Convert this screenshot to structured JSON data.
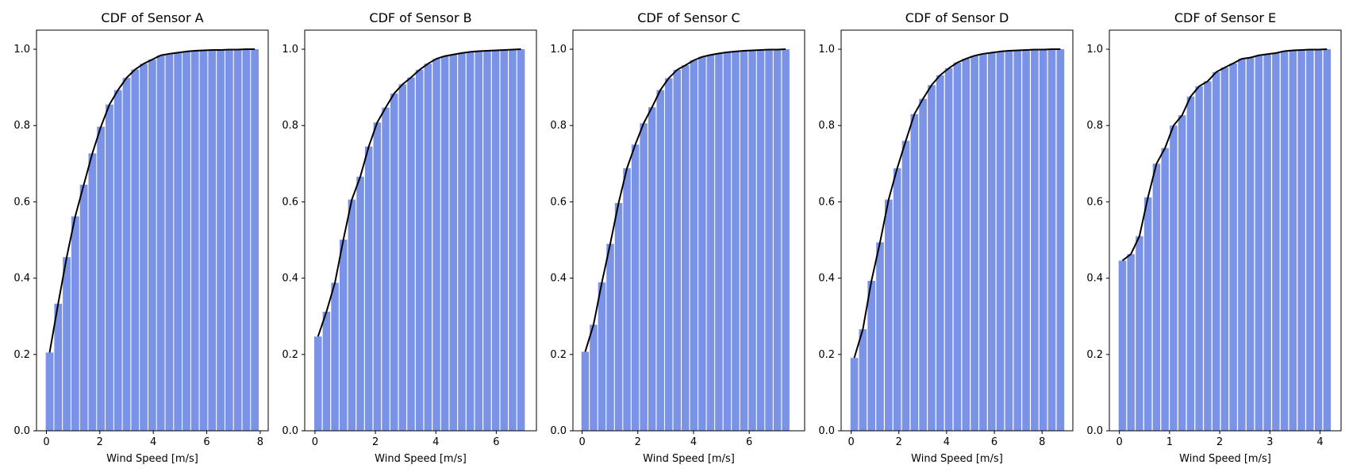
{
  "colors": {
    "bar": "#7b93e6",
    "line": "#000000",
    "axis": "#000000",
    "background": "#ffffff"
  },
  "chart_data": [
    {
      "type": "bar",
      "title": "CDF of Sensor A",
      "xlabel": "Wind Speed [m/s]",
      "ylabel": "",
      "xlim": [
        -0.37,
        8.3
      ],
      "ylim": [
        0,
        1.05
      ],
      "xticks": [
        "0",
        "2",
        "4",
        "6",
        "8"
      ],
      "yticks": [
        "0.0",
        "0.2",
        "0.4",
        "0.6",
        "0.8",
        "1.0"
      ],
      "bar_width": 0.29,
      "x": [
        0.12,
        0.44,
        0.76,
        1.08,
        1.4,
        1.72,
        2.04,
        2.36,
        2.68,
        3.0,
        3.32,
        3.64,
        3.96,
        4.28,
        4.6,
        4.92,
        5.24,
        5.56,
        5.88,
        6.2,
        6.52,
        6.84,
        7.16,
        7.48,
        7.8
      ],
      "values": [
        0.205,
        0.333,
        0.455,
        0.562,
        0.645,
        0.727,
        0.797,
        0.855,
        0.893,
        0.925,
        0.947,
        0.962,
        0.973,
        0.984,
        0.988,
        0.991,
        0.994,
        0.996,
        0.997,
        0.998,
        0.998,
        0.999,
        0.999,
        1.0,
        1.0
      ],
      "grid": false
    },
    {
      "type": "bar",
      "title": "CDF of Sensor B",
      "xlabel": "Wind Speed [m/s]",
      "ylabel": "",
      "xlim": [
        -0.34,
        7.33
      ],
      "ylim": [
        0,
        1.05
      ],
      "xticks": [
        "0",
        "2",
        "4",
        "6"
      ],
      "yticks": [
        "0.0",
        "0.2",
        "0.4",
        "0.6",
        "0.8",
        "1.0"
      ],
      "bar_width": 0.25,
      "x": [
        0.1,
        0.38,
        0.66,
        0.94,
        1.22,
        1.5,
        1.78,
        2.06,
        2.34,
        2.62,
        2.9,
        3.18,
        3.46,
        3.74,
        4.02,
        4.3,
        4.58,
        4.86,
        5.14,
        5.42,
        5.7,
        5.98,
        6.26,
        6.54,
        6.82
      ],
      "values": [
        0.247,
        0.312,
        0.388,
        0.501,
        0.606,
        0.666,
        0.745,
        0.808,
        0.847,
        0.884,
        0.908,
        0.926,
        0.946,
        0.962,
        0.975,
        0.982,
        0.986,
        0.99,
        0.993,
        0.995,
        0.996,
        0.997,
        0.998,
        0.999,
        1.0
      ],
      "grid": false
    },
    {
      "type": "bar",
      "title": "CDF of Sensor C",
      "xlabel": "Wind Speed [m/s]",
      "ylabel": "",
      "xlim": [
        -0.33,
        7.99
      ],
      "ylim": [
        0,
        1.05
      ],
      "xticks": [
        "0",
        "2",
        "4",
        "6"
      ],
      "yticks": [
        "0.0",
        "0.2",
        "0.4",
        "0.6",
        "0.8",
        "1.0"
      ],
      "bar_width": 0.27,
      "x": [
        0.11,
        0.41,
        0.71,
        1.01,
        1.31,
        1.61,
        1.91,
        2.21,
        2.51,
        2.81,
        3.11,
        3.41,
        3.71,
        4.01,
        4.31,
        4.61,
        4.91,
        5.21,
        5.51,
        5.81,
        6.11,
        6.41,
        6.71,
        7.01,
        7.31
      ],
      "values": [
        0.207,
        0.278,
        0.389,
        0.49,
        0.597,
        0.688,
        0.75,
        0.806,
        0.848,
        0.893,
        0.924,
        0.946,
        0.958,
        0.971,
        0.98,
        0.985,
        0.989,
        0.992,
        0.994,
        0.996,
        0.997,
        0.998,
        0.999,
        0.999,
        1.0
      ],
      "grid": false
    },
    {
      "type": "bar",
      "title": "CDF of Sensor D",
      "xlabel": "Wind Speed [m/s]",
      "ylabel": "",
      "xlim": [
        -0.42,
        9.29
      ],
      "ylim": [
        0,
        1.05
      ],
      "xticks": [
        "0",
        "2",
        "4",
        "6",
        "8"
      ],
      "yticks": [
        "0.0",
        "0.2",
        "0.4",
        "0.6",
        "0.8",
        "1.0"
      ],
      "bar_width": 0.32,
      "x": [
        0.13,
        0.49,
        0.85,
        1.21,
        1.57,
        1.93,
        2.29,
        2.65,
        3.01,
        3.37,
        3.73,
        4.09,
        4.45,
        4.81,
        5.17,
        5.53,
        5.89,
        6.25,
        6.61,
        6.97,
        7.33,
        7.69,
        8.05,
        8.41,
        8.77
      ],
      "values": [
        0.191,
        0.266,
        0.393,
        0.494,
        0.606,
        0.688,
        0.76,
        0.83,
        0.87,
        0.906,
        0.932,
        0.95,
        0.965,
        0.975,
        0.983,
        0.988,
        0.991,
        0.994,
        0.996,
        0.997,
        0.998,
        0.999,
        0.999,
        1.0,
        1.0
      ],
      "grid": false
    },
    {
      "type": "bar",
      "title": "CDF of Sensor E",
      "xlabel": "Wind Speed [m/s]",
      "ylabel": "",
      "xlim": [
        -0.2,
        4.42
      ],
      "ylim": [
        0,
        1.05
      ],
      "xticks": [
        "0",
        "1",
        "2",
        "3",
        "4"
      ],
      "yticks": [
        "0.0",
        "0.2",
        "0.4",
        "0.6",
        "0.8",
        "1.0"
      ],
      "bar_width": 0.15,
      "x": [
        0.06,
        0.23,
        0.4,
        0.57,
        0.74,
        0.91,
        1.08,
        1.25,
        1.42,
        1.59,
        1.76,
        1.93,
        2.1,
        2.27,
        2.44,
        2.61,
        2.78,
        2.95,
        3.12,
        3.29,
        3.46,
        3.63,
        3.8,
        3.97,
        4.14
      ],
      "values": [
        0.446,
        0.463,
        0.51,
        0.612,
        0.7,
        0.741,
        0.8,
        0.827,
        0.876,
        0.903,
        0.916,
        0.94,
        0.952,
        0.963,
        0.975,
        0.978,
        0.984,
        0.987,
        0.99,
        0.995,
        0.997,
        0.998,
        0.999,
        0.999,
        1.0
      ],
      "grid": false
    }
  ]
}
